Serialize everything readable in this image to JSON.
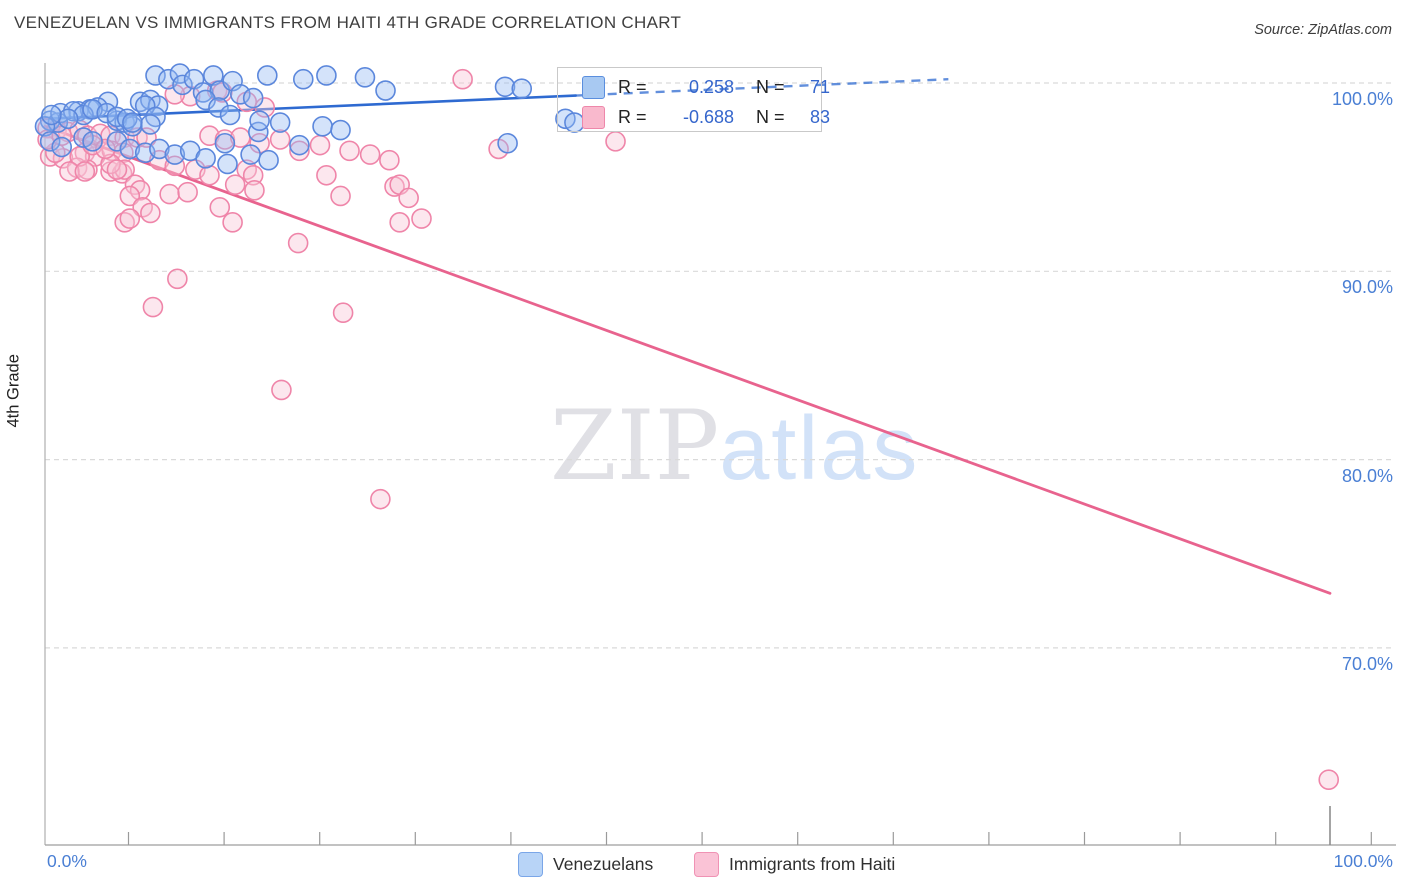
{
  "header": {
    "title": "VENEZUELAN VS IMMIGRANTS FROM HAITI 4TH GRADE CORRELATION CHART",
    "source": "Source: ZipAtlas.com"
  },
  "stats_box": {
    "rows": [
      {
        "series": "Venezuelans",
        "r_label": "R =",
        "r_value": "0.258",
        "n_label": "N =",
        "n_value": "71"
      },
      {
        "series": "Immigrants from Haiti",
        "r_label": "R =",
        "r_value": "-0.688",
        "n_label": "N =",
        "n_value": "83"
      }
    ]
  },
  "axes": {
    "y_label": "4th Grade",
    "x_min_label": "0.0%",
    "x_max_label": "100.0%"
  },
  "watermark": {
    "zip": "ZIP",
    "atlas": "atlas"
  },
  "bottom_legend": [
    {
      "label": "Venezuelans"
    },
    {
      "label": "Immigrants from Haiti"
    }
  ],
  "colors": {
    "accent_blue_text": "#4a7fd4",
    "venezuelans_stroke": "#5b87dc",
    "venezuelans_fill": "rgba(148,186,242,0.40)",
    "haiti_stroke": "#ef85a9",
    "haiti_fill": "rgba(249,198,215,0.42)",
    "trend_blue": "#2e6ad1",
    "trend_pink": "#e8638e",
    "gridline": "#dadada",
    "axis_line": "#9e9e9e"
  },
  "chart_data": {
    "type": "scatter",
    "title": "VENEZUELAN VS IMMIGRANTS FROM HAITI 4TH GRADE CORRELATION CHART",
    "xlabel": "",
    "ylabel": "4th Grade",
    "xlim": [
      0,
      105
    ],
    "ylim": [
      59.5,
      101
    ],
    "grid": "horizontal-dashed",
    "legend_position": "bottom-center",
    "y_axis": {
      "gridlines": [
        {
          "value": 100,
          "label": "100.0%"
        },
        {
          "value": 90,
          "label": "90.0%"
        },
        {
          "value": 80,
          "label": "80.0%"
        },
        {
          "value": 70,
          "label": "70.0%"
        }
      ]
    },
    "x_axis": {
      "min_label": "0.0%",
      "max_label": "100.0%"
    },
    "series": [
      {
        "name": "Venezuelans",
        "r": 0.258,
        "n": 71,
        "trend": {
          "x1": 0,
          "y1": 98.1,
          "x2": 70.3,
          "y2": 100.2,
          "solid_until_x": 41.3
        },
        "points": [
          [
            8.6,
            100.4
          ],
          [
            9.6,
            100.2
          ],
          [
            10.5,
            100.5
          ],
          [
            10.7,
            99.9
          ],
          [
            11.6,
            100.2
          ],
          [
            12.3,
            99.5
          ],
          [
            13.1,
            100.4
          ],
          [
            13.6,
            99.6
          ],
          [
            14.6,
            100.1
          ],
          [
            15.2,
            99.4
          ],
          [
            16.2,
            99.2
          ],
          [
            17.3,
            100.4
          ],
          [
            20.1,
            100.2
          ],
          [
            21.9,
            100.4
          ],
          [
            24.9,
            100.3
          ],
          [
            26.5,
            99.6
          ],
          [
            35.8,
            99.8
          ],
          [
            37.1,
            99.7
          ],
          [
            7.4,
            99.0
          ],
          [
            8.2,
            99.1
          ],
          [
            8.8,
            98.8
          ],
          [
            4.9,
            99.0
          ],
          [
            7.8,
            98.8
          ],
          [
            0.4,
            98.0
          ],
          [
            1.0,
            97.9
          ],
          [
            0.0,
            97.7
          ],
          [
            2.6,
            98.5
          ],
          [
            3.5,
            98.6
          ],
          [
            4.1,
            98.7
          ],
          [
            5.6,
            98.0
          ],
          [
            6.2,
            97.9
          ],
          [
            6.8,
            97.7
          ],
          [
            8.6,
            98.2
          ],
          [
            8.2,
            97.8
          ],
          [
            1.2,
            98.4
          ],
          [
            2.2,
            98.5
          ],
          [
            3.0,
            98.3
          ],
          [
            3.7,
            98.6
          ],
          [
            4.8,
            98.4
          ],
          [
            5.6,
            98.2
          ],
          [
            6.4,
            98.1
          ],
          [
            6.8,
            97.9
          ],
          [
            1.8,
            98.1
          ],
          [
            0.5,
            98.3
          ],
          [
            0.4,
            96.9
          ],
          [
            1.3,
            96.6
          ],
          [
            3.0,
            97.1
          ],
          [
            3.7,
            96.9
          ],
          [
            5.6,
            96.9
          ],
          [
            6.6,
            96.5
          ],
          [
            7.8,
            96.3
          ],
          [
            8.9,
            96.5
          ],
          [
            10.1,
            96.2
          ],
          [
            11.3,
            96.4
          ],
          [
            12.5,
            96.0
          ],
          [
            14.0,
            96.8
          ],
          [
            14.2,
            95.7
          ],
          [
            16.0,
            96.2
          ],
          [
            16.6,
            97.4
          ],
          [
            21.6,
            97.7
          ],
          [
            23.0,
            97.5
          ],
          [
            12.5,
            99.1
          ],
          [
            13.5,
            98.7
          ],
          [
            14.4,
            98.3
          ],
          [
            16.7,
            98.0
          ],
          [
            40.5,
            98.1
          ],
          [
            41.2,
            97.9
          ],
          [
            36.0,
            96.8
          ],
          [
            18.3,
            97.9
          ],
          [
            17.4,
            95.9
          ],
          [
            19.8,
            96.7
          ]
        ]
      },
      {
        "name": "Immigrants from Haiti",
        "r": -0.688,
        "n": 83,
        "trend": {
          "x1": 0,
          "y1": 97.7,
          "x2": 100,
          "y2": 72.9
        },
        "points": [
          [
            32.5,
            100.2
          ],
          [
            13.4,
            99.6
          ],
          [
            13.8,
            99.5
          ],
          [
            11.3,
            99.3
          ],
          [
            10.1,
            99.4
          ],
          [
            0.2,
            97.6
          ],
          [
            0.9,
            97.5
          ],
          [
            1.8,
            97.4
          ],
          [
            2.7,
            97.5
          ],
          [
            3.3,
            97.2
          ],
          [
            4.3,
            97.3
          ],
          [
            5.1,
            97.2
          ],
          [
            6.2,
            97.1
          ],
          [
            7.2,
            97.1
          ],
          [
            7.9,
            97.1
          ],
          [
            0.4,
            96.1
          ],
          [
            1.4,
            96.0
          ],
          [
            3.1,
            96.3
          ],
          [
            3.9,
            96.1
          ],
          [
            5.2,
            96.4
          ],
          [
            6.1,
            96.3
          ],
          [
            5.1,
            95.3
          ],
          [
            6.0,
            95.2
          ],
          [
            2.5,
            95.5
          ],
          [
            3.3,
            95.4
          ],
          [
            0.8,
            96.3
          ],
          [
            2.7,
            96.1
          ],
          [
            6.2,
            95.4
          ],
          [
            1.9,
            95.3
          ],
          [
            3.1,
            95.3
          ],
          [
            5.1,
            95.7
          ],
          [
            5.6,
            95.4
          ],
          [
            7.0,
            94.6
          ],
          [
            7.4,
            94.3
          ],
          [
            6.6,
            94.0
          ],
          [
            9.7,
            94.1
          ],
          [
            11.1,
            94.2
          ],
          [
            7.6,
            93.4
          ],
          [
            8.2,
            93.1
          ],
          [
            13.6,
            93.4
          ],
          [
            14.6,
            92.6
          ],
          [
            6.2,
            92.6
          ],
          [
            6.6,
            92.8
          ],
          [
            15.7,
            95.4
          ],
          [
            16.2,
            95.1
          ],
          [
            21.9,
            95.1
          ],
          [
            27.2,
            94.5
          ],
          [
            27.6,
            94.6
          ],
          [
            28.3,
            93.9
          ],
          [
            27.6,
            92.6
          ],
          [
            29.3,
            92.8
          ],
          [
            19.7,
            91.5
          ],
          [
            23.0,
            94.0
          ],
          [
            35.3,
            96.5
          ],
          [
            44.4,
            96.9
          ],
          [
            12.8,
            97.2
          ],
          [
            14.0,
            97.0
          ],
          [
            15.2,
            97.1
          ],
          [
            16.7,
            96.8
          ],
          [
            18.3,
            97.0
          ],
          [
            19.8,
            96.4
          ],
          [
            21.4,
            96.7
          ],
          [
            23.7,
            96.4
          ],
          [
            25.3,
            96.2
          ],
          [
            26.8,
            95.9
          ],
          [
            15.7,
            99.0
          ],
          [
            17.1,
            98.7
          ],
          [
            10.3,
            89.6
          ],
          [
            8.4,
            88.1
          ],
          [
            23.2,
            87.8
          ],
          [
            18.4,
            83.7
          ],
          [
            26.1,
            77.9
          ],
          [
            99.9,
            63.0
          ],
          [
            8.9,
            95.9
          ],
          [
            10.1,
            95.6
          ],
          [
            11.7,
            95.4
          ],
          [
            12.8,
            95.1
          ],
          [
            14.8,
            94.6
          ],
          [
            16.3,
            94.3
          ],
          [
            0.2,
            97.0
          ],
          [
            3.7,
            96.7
          ],
          [
            4.7,
            96.5
          ],
          [
            1.3,
            97.2
          ]
        ]
      }
    ]
  }
}
